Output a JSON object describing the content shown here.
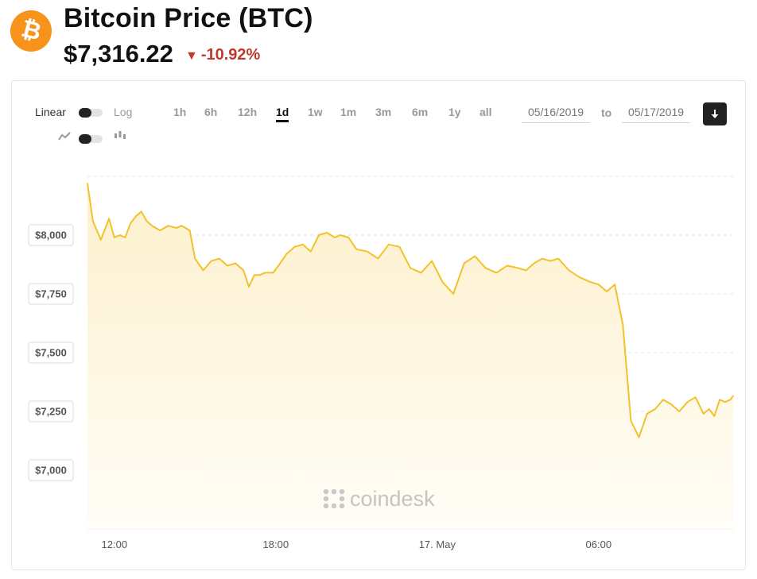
{
  "header": {
    "logo_symbol": "₿",
    "title": "Bitcoin Price (BTC)",
    "price": "$7,316.22",
    "change": "-10.92%",
    "change_icon": "down-triangle-icon",
    "change_color": "#c0392b",
    "brand_color": "#f7931a"
  },
  "controls": {
    "scale_left": "Linear",
    "scale_right": "Log",
    "chart_mode_left_icon": "line-chart-icon",
    "chart_mode_right_icon": "candlestick-icon",
    "ranges": [
      "1h",
      "6h",
      "12h",
      "1d",
      "1w",
      "1m",
      "3m",
      "6m",
      "1y",
      "all"
    ],
    "active_range": "1d",
    "date_from": "05/16/2019",
    "to_label": "to",
    "date_to": "05/17/2019",
    "download_icon": "download-icon"
  },
  "watermark": "coindesk",
  "chart_data": {
    "type": "area",
    "title": "",
    "xlabel": "",
    "ylabel": "",
    "line_color": "#f2c22b",
    "fill_color": "#fdf3d7",
    "x_ticks": [
      "12:00",
      "18:00",
      "17. May",
      "06:00"
    ],
    "y_ticks": [
      "$8,000",
      "$7,750",
      "$7,500",
      "$7,250",
      "$7,000"
    ],
    "y_tick_values": [
      8000,
      7750,
      7500,
      7250,
      7000
    ],
    "ylim": [
      6750,
      8250
    ],
    "xlim": [
      0,
      24
    ],
    "grid": true,
    "series": [
      {
        "x": [
          0,
          0.2,
          0.5,
          0.8,
          1.0,
          1.2,
          1.4,
          1.6,
          1.8,
          2.0,
          2.2,
          2.4,
          2.7,
          3.0,
          3.3,
          3.5,
          3.8,
          4.0,
          4.3,
          4.6,
          4.9,
          5.2,
          5.5,
          5.8,
          6.0,
          6.2,
          6.4,
          6.6,
          6.9,
          7.1,
          7.4,
          7.7,
          8.0,
          8.3,
          8.6,
          8.9,
          9.2,
          9.4,
          9.7,
          10.0,
          10.4,
          10.8,
          11.2,
          11.6,
          12.0,
          12.4,
          12.8,
          13.2,
          13.6,
          14.0,
          14.4,
          14.8,
          15.2,
          15.6,
          16.0,
          16.3,
          16.6,
          16.9,
          17.2,
          17.5,
          17.9,
          18.3,
          18.7,
          19.0,
          19.3,
          19.6,
          19.9,
          20.2,
          20.5,
          20.8,
          21.1,
          21.4,
          21.7,
          22.0,
          22.3,
          22.6,
          22.9,
          23.1,
          23.3,
          23.5,
          23.7,
          23.9,
          24.0
        ],
        "values": [
          8220,
          8060,
          7980,
          8070,
          7990,
          8000,
          7990,
          8050,
          8080,
          8100,
          8060,
          8040,
          8020,
          8040,
          8030,
          8040,
          8020,
          7900,
          7850,
          7890,
          7900,
          7870,
          7880,
          7850,
          7780,
          7830,
          7830,
          7840,
          7840,
          7870,
          7920,
          7950,
          7960,
          7930,
          8000,
          8010,
          7990,
          8000,
          7990,
          7940,
          7930,
          7900,
          7960,
          7950,
          7860,
          7840,
          7890,
          7800,
          7750,
          7880,
          7910,
          7860,
          7840,
          7870,
          7860,
          7850,
          7880,
          7900,
          7890,
          7900,
          7850,
          7820,
          7800,
          7790,
          7760,
          7790,
          7620,
          7210,
          7140,
          7240,
          7260,
          7300,
          7280,
          7250,
          7290,
          7310,
          7240,
          7260,
          7230,
          7300,
          7290,
          7300,
          7316
        ]
      }
    ]
  }
}
